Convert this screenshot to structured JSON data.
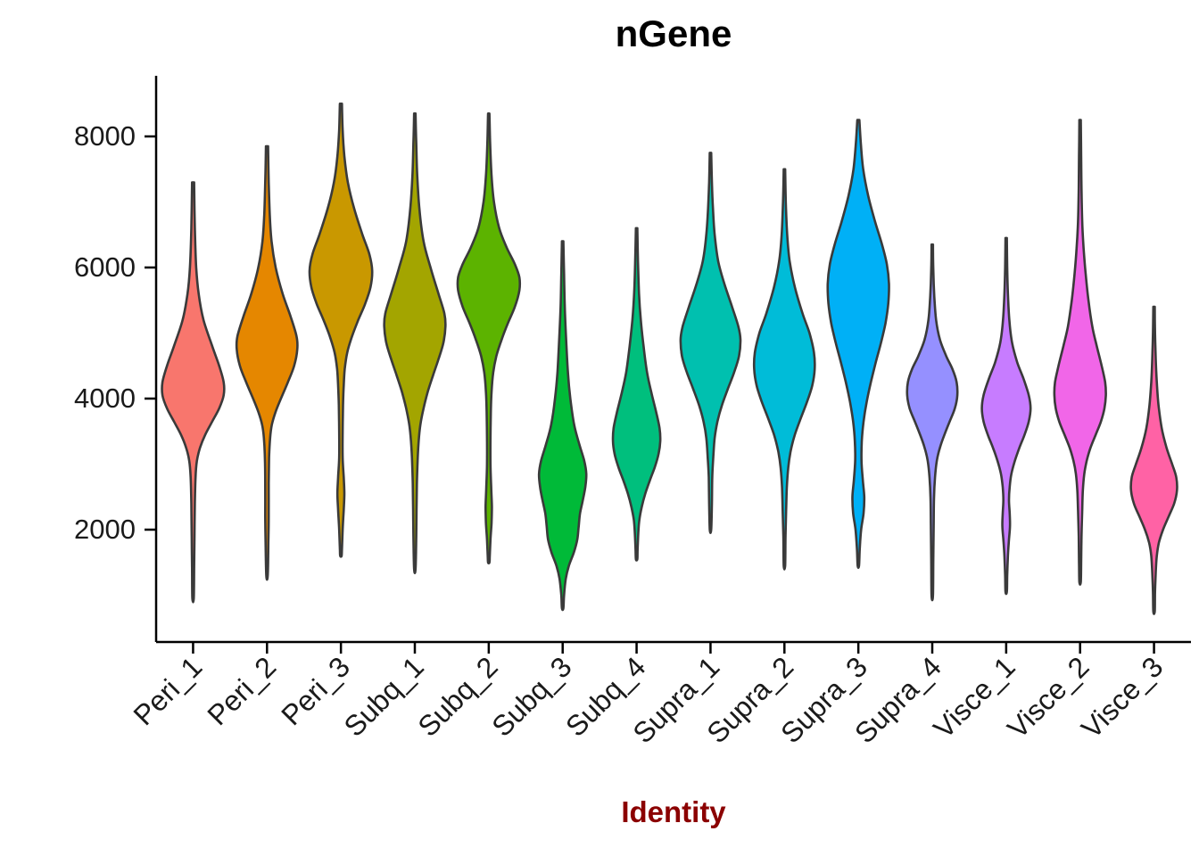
{
  "chart_data": {
    "type": "violin",
    "title": "nGene",
    "xlabel": "Identity",
    "ylabel": "",
    "yticks": [
      2000,
      4000,
      6000,
      8000
    ],
    "ylim": [
      300,
      8900
    ],
    "grid": false,
    "legend": "none",
    "x_tick_rotation": 45,
    "categories": [
      "Peri_1",
      "Peri_2",
      "Peri_3",
      "Subq_1",
      "Subq_2",
      "Subq_3",
      "Subq_4",
      "Supra_1",
      "Supra_2",
      "Supra_3",
      "Supra_4",
      "Visce_1",
      "Visce_2",
      "Visce_3"
    ],
    "violins": [
      {
        "label": "Peri_1",
        "color": "#F8766D",
        "profile": [
          [
            7300,
            0.03
          ],
          [
            6600,
            0.05
          ],
          [
            6000,
            0.09
          ],
          [
            5600,
            0.16
          ],
          [
            5200,
            0.3
          ],
          [
            4800,
            0.55
          ],
          [
            4500,
            0.75
          ],
          [
            4250,
            0.88
          ],
          [
            4050,
            0.88
          ],
          [
            3850,
            0.75
          ],
          [
            3650,
            0.55
          ],
          [
            3450,
            0.35
          ],
          [
            3250,
            0.2
          ],
          [
            3050,
            0.11
          ],
          [
            2800,
            0.07
          ],
          [
            2400,
            0.05
          ],
          [
            1900,
            0.04
          ],
          [
            1400,
            0.03
          ],
          [
            950,
            0.02
          ]
        ]
      },
      {
        "label": "Peri_2",
        "color": "#E58700",
        "profile": [
          [
            7850,
            0.03
          ],
          [
            7300,
            0.05
          ],
          [
            6800,
            0.08
          ],
          [
            6400,
            0.13
          ],
          [
            6000,
            0.25
          ],
          [
            5600,
            0.45
          ],
          [
            5250,
            0.68
          ],
          [
            4950,
            0.85
          ],
          [
            4750,
            0.87
          ],
          [
            4500,
            0.78
          ],
          [
            4250,
            0.6
          ],
          [
            4000,
            0.4
          ],
          [
            3800,
            0.25
          ],
          [
            3600,
            0.14
          ],
          [
            3400,
            0.09
          ],
          [
            3100,
            0.06
          ],
          [
            2700,
            0.05
          ],
          [
            2200,
            0.05
          ],
          [
            1800,
            0.04
          ],
          [
            1300,
            0.02
          ]
        ]
      },
      {
        "label": "Peri_3",
        "color": "#C99800",
        "profile": [
          [
            8500,
            0.03
          ],
          [
            8100,
            0.05
          ],
          [
            7700,
            0.1
          ],
          [
            7300,
            0.2
          ],
          [
            6900,
            0.38
          ],
          [
            6500,
            0.62
          ],
          [
            6200,
            0.82
          ],
          [
            5950,
            0.9
          ],
          [
            5700,
            0.85
          ],
          [
            5450,
            0.7
          ],
          [
            5200,
            0.5
          ],
          [
            4950,
            0.32
          ],
          [
            4700,
            0.18
          ],
          [
            4450,
            0.11
          ],
          [
            4200,
            0.08
          ],
          [
            3900,
            0.06
          ],
          [
            3500,
            0.05
          ],
          [
            3100,
            0.05
          ],
          [
            2800,
            0.08
          ],
          [
            2550,
            0.1
          ],
          [
            2300,
            0.08
          ],
          [
            2000,
            0.05
          ],
          [
            1700,
            0.03
          ],
          [
            1600,
            0.02
          ]
        ]
      },
      {
        "label": "Subq_1",
        "color": "#A3A500",
        "profile": [
          [
            8350,
            0.02
          ],
          [
            7900,
            0.04
          ],
          [
            7400,
            0.07
          ],
          [
            6900,
            0.13
          ],
          [
            6400,
            0.25
          ],
          [
            6000,
            0.45
          ],
          [
            5600,
            0.68
          ],
          [
            5300,
            0.85
          ],
          [
            5100,
            0.88
          ],
          [
            4850,
            0.82
          ],
          [
            4600,
            0.68
          ],
          [
            4350,
            0.52
          ],
          [
            4100,
            0.37
          ],
          [
            3850,
            0.25
          ],
          [
            3600,
            0.16
          ],
          [
            3350,
            0.11
          ],
          [
            3050,
            0.08
          ],
          [
            2700,
            0.06
          ],
          [
            2300,
            0.05
          ],
          [
            1900,
            0.04
          ],
          [
            1400,
            0.02
          ]
        ]
      },
      {
        "label": "Subq_2",
        "color": "#5CB300",
        "profile": [
          [
            8350,
            0.02
          ],
          [
            7900,
            0.04
          ],
          [
            7400,
            0.08
          ],
          [
            7000,
            0.15
          ],
          [
            6600,
            0.3
          ],
          [
            6300,
            0.52
          ],
          [
            6050,
            0.75
          ],
          [
            5850,
            0.88
          ],
          [
            5650,
            0.88
          ],
          [
            5400,
            0.75
          ],
          [
            5150,
            0.55
          ],
          [
            4900,
            0.37
          ],
          [
            4650,
            0.22
          ],
          [
            4400,
            0.13
          ],
          [
            4100,
            0.08
          ],
          [
            3800,
            0.06
          ],
          [
            3400,
            0.05
          ],
          [
            3000,
            0.05
          ],
          [
            2650,
            0.07
          ],
          [
            2350,
            0.09
          ],
          [
            2100,
            0.08
          ],
          [
            1850,
            0.05
          ],
          [
            1600,
            0.03
          ],
          [
            1500,
            0.02
          ]
        ]
      },
      {
        "label": "Subq_3",
        "color": "#00BA38",
        "profile": [
          [
            6400,
            0.02
          ],
          [
            5900,
            0.04
          ],
          [
            5400,
            0.06
          ],
          [
            4900,
            0.1
          ],
          [
            4400,
            0.15
          ],
          [
            4000,
            0.22
          ],
          [
            3600,
            0.33
          ],
          [
            3300,
            0.48
          ],
          [
            3050,
            0.62
          ],
          [
            2850,
            0.68
          ],
          [
            2650,
            0.65
          ],
          [
            2450,
            0.58
          ],
          [
            2250,
            0.5
          ],
          [
            2050,
            0.46
          ],
          [
            1850,
            0.42
          ],
          [
            1650,
            0.32
          ],
          [
            1450,
            0.18
          ],
          [
            1250,
            0.09
          ],
          [
            1000,
            0.04
          ],
          [
            800,
            0.02
          ]
        ]
      },
      {
        "label": "Subq_4",
        "color": "#00BF7D",
        "profile": [
          [
            6600,
            0.02
          ],
          [
            6100,
            0.04
          ],
          [
            5600,
            0.07
          ],
          [
            5200,
            0.12
          ],
          [
            4800,
            0.2
          ],
          [
            4400,
            0.3
          ],
          [
            4100,
            0.42
          ],
          [
            3800,
            0.56
          ],
          [
            3550,
            0.66
          ],
          [
            3350,
            0.68
          ],
          [
            3150,
            0.63
          ],
          [
            2950,
            0.52
          ],
          [
            2750,
            0.38
          ],
          [
            2550,
            0.25
          ],
          [
            2350,
            0.15
          ],
          [
            2150,
            0.08
          ],
          [
            1950,
            0.05
          ],
          [
            1700,
            0.03
          ],
          [
            1550,
            0.02
          ]
        ]
      },
      {
        "label": "Supra_1",
        "color": "#00C0AF",
        "profile": [
          [
            7750,
            0.02
          ],
          [
            7300,
            0.04
          ],
          [
            6900,
            0.07
          ],
          [
            6500,
            0.12
          ],
          [
            6100,
            0.22
          ],
          [
            5750,
            0.4
          ],
          [
            5400,
            0.62
          ],
          [
            5100,
            0.8
          ],
          [
            4900,
            0.86
          ],
          [
            4650,
            0.82
          ],
          [
            4400,
            0.68
          ],
          [
            4150,
            0.5
          ],
          [
            3900,
            0.33
          ],
          [
            3650,
            0.2
          ],
          [
            3400,
            0.12
          ],
          [
            3100,
            0.08
          ],
          [
            2800,
            0.05
          ],
          [
            2400,
            0.04
          ],
          [
            2000,
            0.02
          ]
        ]
      },
      {
        "label": "Supra_2",
        "color": "#00BCD8",
        "profile": [
          [
            7500,
            0.02
          ],
          [
            7000,
            0.04
          ],
          [
            6500,
            0.08
          ],
          [
            6100,
            0.15
          ],
          [
            5700,
            0.3
          ],
          [
            5300,
            0.52
          ],
          [
            5000,
            0.72
          ],
          [
            4700,
            0.85
          ],
          [
            4450,
            0.87
          ],
          [
            4200,
            0.8
          ],
          [
            3950,
            0.65
          ],
          [
            3700,
            0.47
          ],
          [
            3450,
            0.3
          ],
          [
            3200,
            0.18
          ],
          [
            2950,
            0.11
          ],
          [
            2650,
            0.07
          ],
          [
            2300,
            0.05
          ],
          [
            1900,
            0.03
          ],
          [
            1450,
            0.02
          ]
        ]
      },
      {
        "label": "Supra_3",
        "color": "#00B0F6",
        "profile": [
          [
            8250,
            0.03
          ],
          [
            7900,
            0.07
          ],
          [
            7500,
            0.14
          ],
          [
            7100,
            0.28
          ],
          [
            6700,
            0.48
          ],
          [
            6350,
            0.68
          ],
          [
            6050,
            0.82
          ],
          [
            5750,
            0.88
          ],
          [
            5450,
            0.86
          ],
          [
            5150,
            0.78
          ],
          [
            4850,
            0.65
          ],
          [
            4550,
            0.5
          ],
          [
            4250,
            0.36
          ],
          [
            3950,
            0.24
          ],
          [
            3650,
            0.15
          ],
          [
            3350,
            0.1
          ],
          [
            3050,
            0.09
          ],
          [
            2750,
            0.13
          ],
          [
            2500,
            0.17
          ],
          [
            2250,
            0.15
          ],
          [
            2000,
            0.08
          ],
          [
            1700,
            0.04
          ],
          [
            1450,
            0.02
          ]
        ]
      },
      {
        "label": "Supra_4",
        "color": "#9590FF",
        "profile": [
          [
            6350,
            0.02
          ],
          [
            5950,
            0.03
          ],
          [
            5550,
            0.06
          ],
          [
            5200,
            0.11
          ],
          [
            4900,
            0.22
          ],
          [
            4650,
            0.4
          ],
          [
            4450,
            0.58
          ],
          [
            4250,
            0.7
          ],
          [
            4050,
            0.72
          ],
          [
            3850,
            0.65
          ],
          [
            3650,
            0.5
          ],
          [
            3450,
            0.35
          ],
          [
            3250,
            0.22
          ],
          [
            3050,
            0.13
          ],
          [
            2800,
            0.08
          ],
          [
            2500,
            0.05
          ],
          [
            2100,
            0.04
          ],
          [
            1600,
            0.03
          ],
          [
            1000,
            0.02
          ]
        ]
      },
      {
        "label": "Visce_1",
        "color": "#C77CFF",
        "profile": [
          [
            6450,
            0.02
          ],
          [
            6000,
            0.03
          ],
          [
            5600,
            0.05
          ],
          [
            5200,
            0.09
          ],
          [
            4850,
            0.17
          ],
          [
            4550,
            0.32
          ],
          [
            4300,
            0.5
          ],
          [
            4050,
            0.65
          ],
          [
            3850,
            0.7
          ],
          [
            3650,
            0.65
          ],
          [
            3450,
            0.53
          ],
          [
            3250,
            0.38
          ],
          [
            3050,
            0.25
          ],
          [
            2850,
            0.15
          ],
          [
            2650,
            0.1
          ],
          [
            2450,
            0.08
          ],
          [
            2250,
            0.1
          ],
          [
            2050,
            0.11
          ],
          [
            1850,
            0.08
          ],
          [
            1600,
            0.05
          ],
          [
            1300,
            0.03
          ],
          [
            1050,
            0.02
          ]
        ]
      },
      {
        "label": "Visce_2",
        "color": "#F166E8",
        "profile": [
          [
            8250,
            0.02
          ],
          [
            7700,
            0.03
          ],
          [
            7200,
            0.04
          ],
          [
            6700,
            0.06
          ],
          [
            6300,
            0.1
          ],
          [
            5900,
            0.16
          ],
          [
            5500,
            0.24
          ],
          [
            5100,
            0.35
          ],
          [
            4800,
            0.48
          ],
          [
            4500,
            0.62
          ],
          [
            4250,
            0.72
          ],
          [
            4050,
            0.74
          ],
          [
            3850,
            0.7
          ],
          [
            3650,
            0.6
          ],
          [
            3450,
            0.45
          ],
          [
            3250,
            0.3
          ],
          [
            3050,
            0.19
          ],
          [
            2850,
            0.12
          ],
          [
            2600,
            0.08
          ],
          [
            2300,
            0.06
          ],
          [
            1900,
            0.04
          ],
          [
            1500,
            0.03
          ],
          [
            1200,
            0.02
          ]
        ]
      },
      {
        "label": "Visce_3",
        "color": "#FF62A5",
        "profile": [
          [
            5400,
            0.02
          ],
          [
            5000,
            0.03
          ],
          [
            4600,
            0.05
          ],
          [
            4250,
            0.08
          ],
          [
            3900,
            0.13
          ],
          [
            3550,
            0.22
          ],
          [
            3250,
            0.36
          ],
          [
            3000,
            0.52
          ],
          [
            2800,
            0.64
          ],
          [
            2600,
            0.66
          ],
          [
            2400,
            0.58
          ],
          [
            2200,
            0.42
          ],
          [
            2000,
            0.26
          ],
          [
            1800,
            0.14
          ],
          [
            1600,
            0.08
          ],
          [
            1350,
            0.05
          ],
          [
            1050,
            0.03
          ],
          [
            750,
            0.02
          ]
        ]
      }
    ],
    "style": {
      "stroke_color": "#3A3A3A",
      "stroke_width": 2.6,
      "axis_color": "#000000",
      "title_color": "#000000",
      "xlabel_color": "#8B0000",
      "tick_label_color": "#1A1A1A"
    }
  }
}
